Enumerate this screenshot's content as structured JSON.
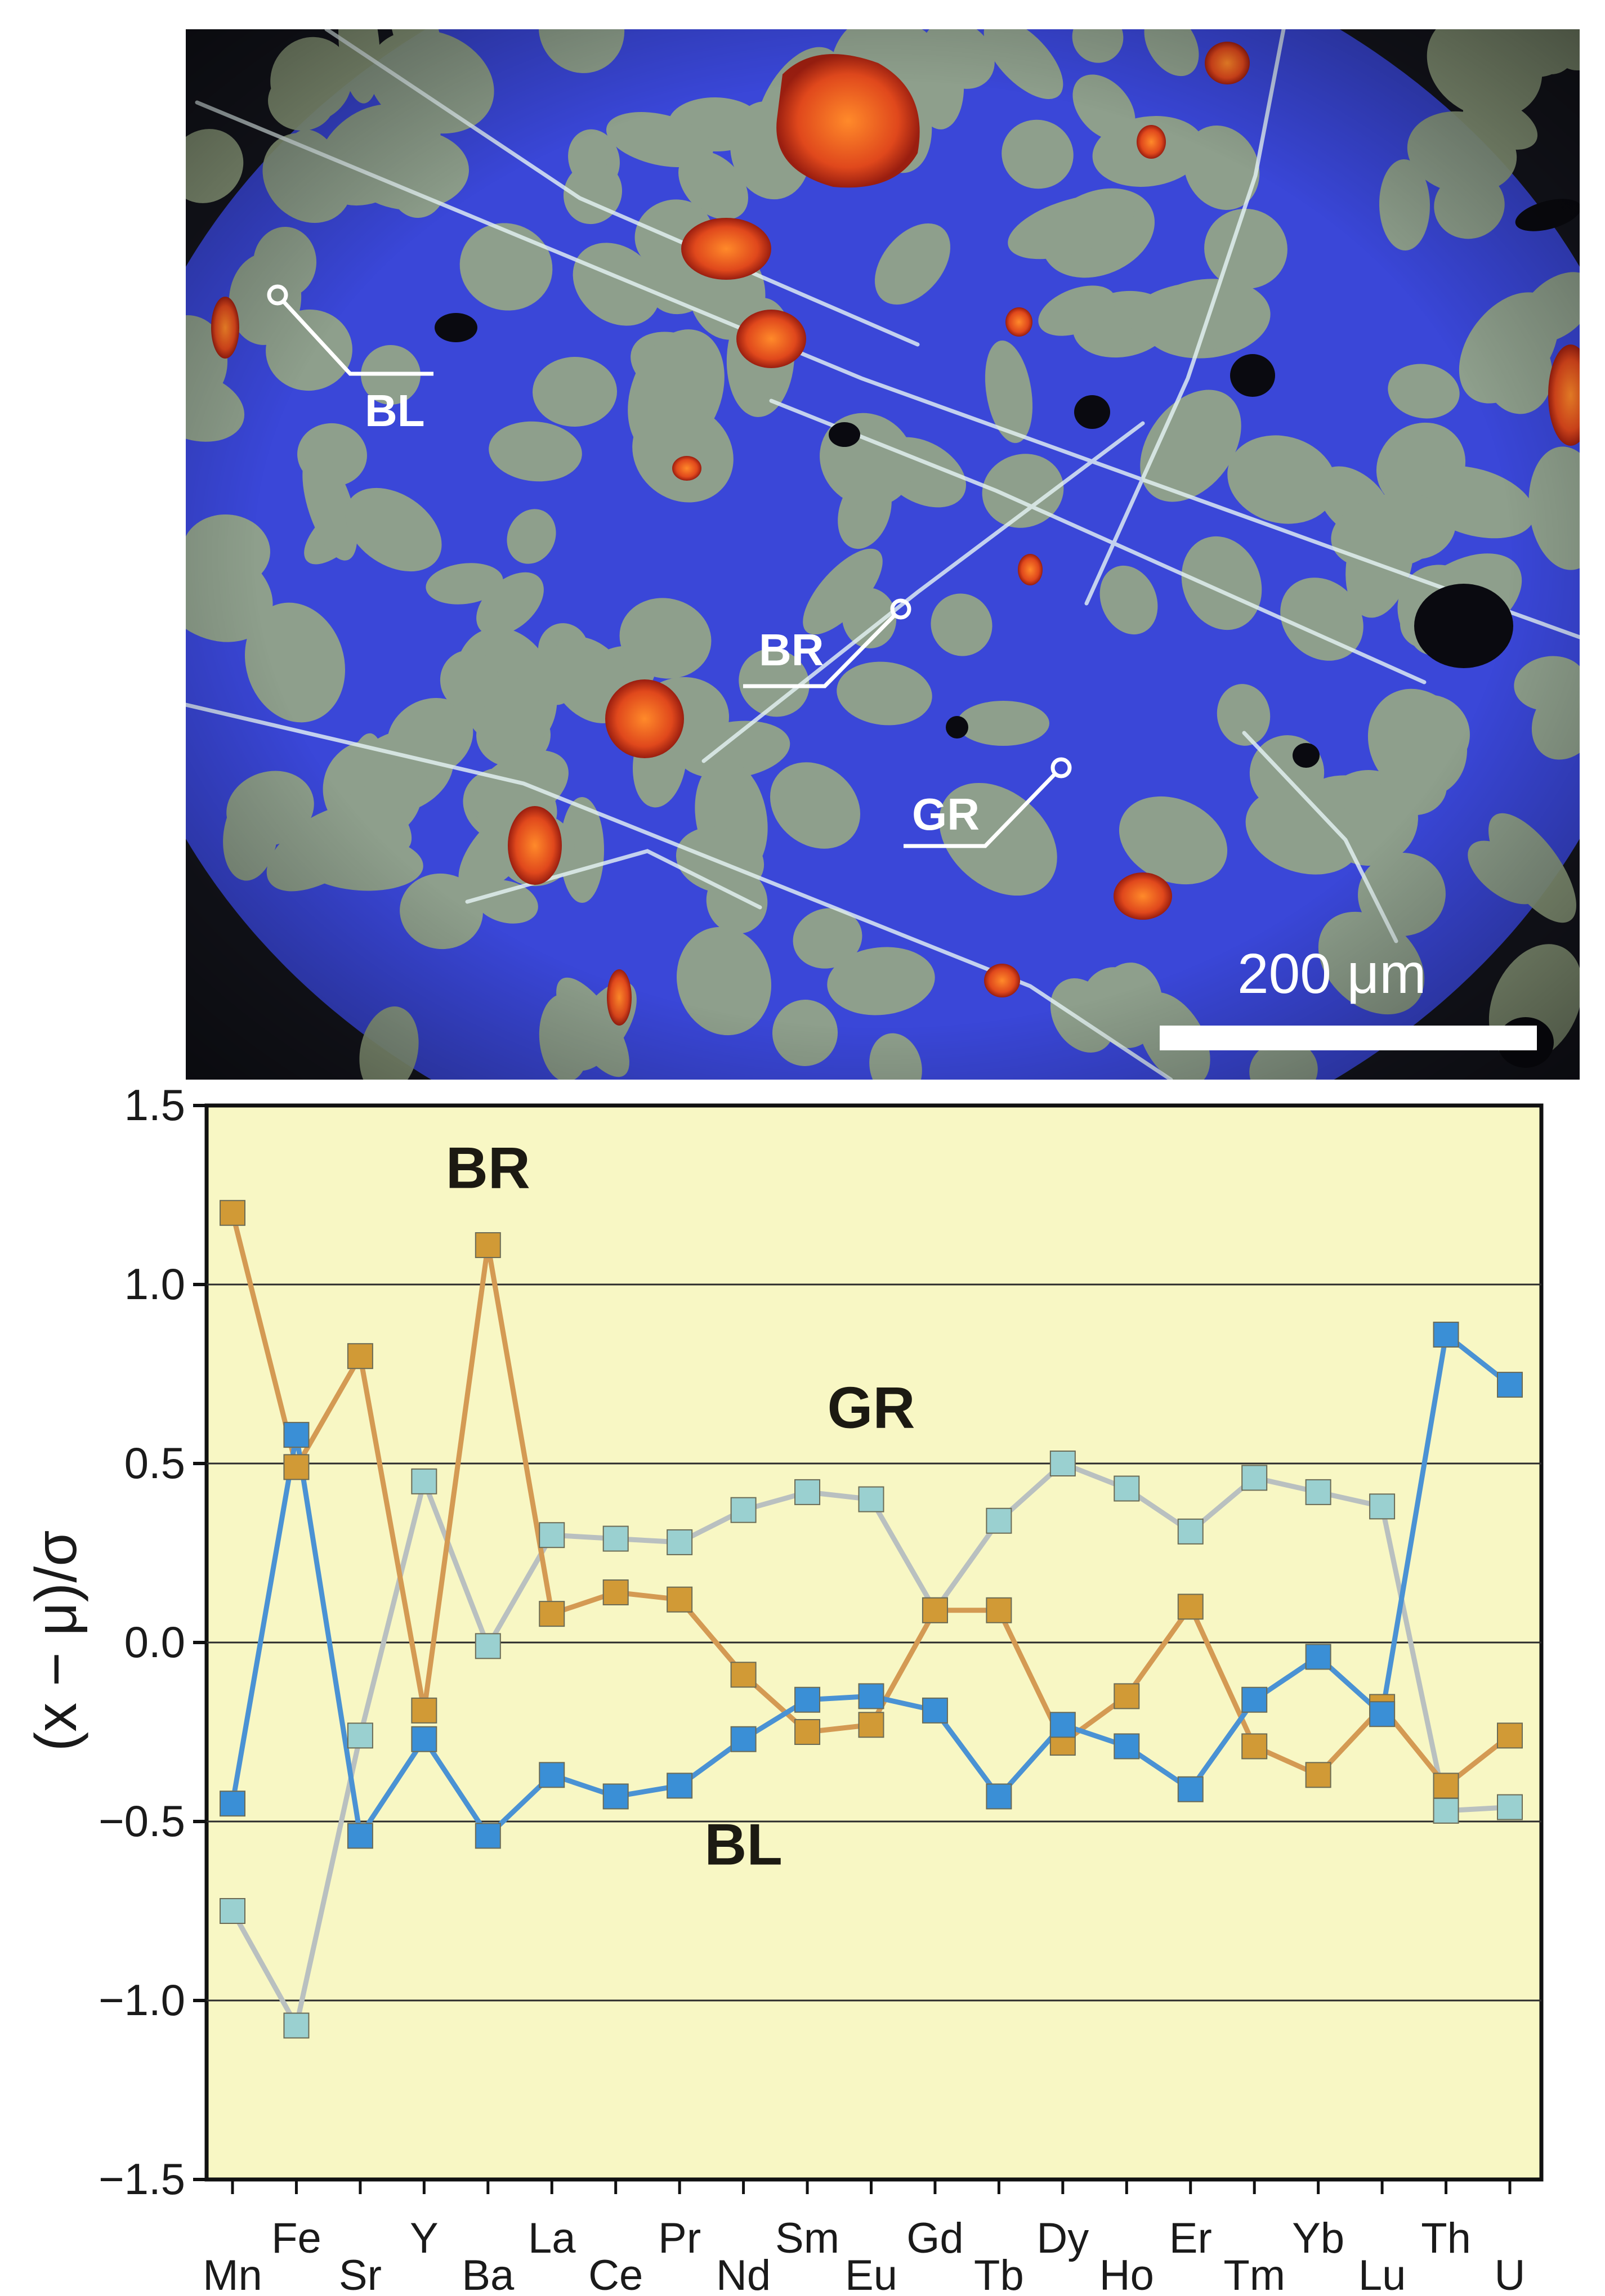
{
  "micrograph": {
    "labels": {
      "bl": "BL",
      "br": "BR",
      "gr": "GR"
    },
    "scale_bar_text": "200 μm",
    "colors": {
      "matrix": "#3a47d8",
      "grains": "#97a785",
      "inclusions": "#e0481c",
      "veins": "#e6f4f5"
    }
  },
  "chart_data": {
    "type": "line",
    "ylabel": "(x − μ)/σ",
    "ylim": [
      -1.5,
      1.5
    ],
    "yticks": [
      1.5,
      1.0,
      0.5,
      0.0,
      -0.5,
      -1.0,
      -1.5
    ],
    "ytick_labels": [
      "1.5",
      "1.0",
      "0.5",
      "0.0",
      "−0.5",
      "−1.0",
      "−1.5"
    ],
    "categories": [
      "Mn",
      "Fe",
      "Sr",
      "Y",
      "Ba",
      "La",
      "Ce",
      "Pr",
      "Nd",
      "Sm",
      "Eu",
      "Gd",
      "Tb",
      "Dy",
      "Ho",
      "Er",
      "Tm",
      "Yb",
      "Lu",
      "Th",
      "U"
    ],
    "grid": "horizontal",
    "background": "#f8f7c4",
    "series": [
      {
        "name": "BR",
        "color": "#d19a36",
        "line_color": "#d49a53",
        "label_category": "Ba",
        "label_y": 1.27,
        "values": [
          1.2,
          0.49,
          0.8,
          -0.19,
          1.11,
          0.08,
          0.14,
          0.12,
          -0.09,
          -0.25,
          -0.23,
          0.09,
          0.09,
          -0.28,
          -0.15,
          0.1,
          -0.29,
          -0.37,
          -0.18,
          -0.4,
          -0.26
        ]
      },
      {
        "name": "GR",
        "color": "#9ad0d0",
        "line_color": "#b9c0c0",
        "label_category": "Eu",
        "label_y": 0.6,
        "values": [
          -0.75,
          -1.07,
          -0.26,
          0.45,
          -0.01,
          0.3,
          0.29,
          0.28,
          0.37,
          0.42,
          0.4,
          0.09,
          0.34,
          0.5,
          0.43,
          0.31,
          0.46,
          0.42,
          0.38,
          -0.47,
          -0.46
        ]
      },
      {
        "name": "BL",
        "color": "#3a8fd6",
        "line_color": "#4a92d4",
        "label_category": "Nd",
        "label_y": -0.62,
        "values": [
          -0.45,
          0.58,
          -0.54,
          -0.27,
          -0.54,
          -0.37,
          -0.43,
          -0.4,
          -0.27,
          -0.16,
          -0.15,
          -0.19,
          -0.43,
          -0.23,
          -0.29,
          -0.41,
          -0.16,
          -0.04,
          -0.2,
          0.86,
          0.72
        ]
      }
    ]
  }
}
